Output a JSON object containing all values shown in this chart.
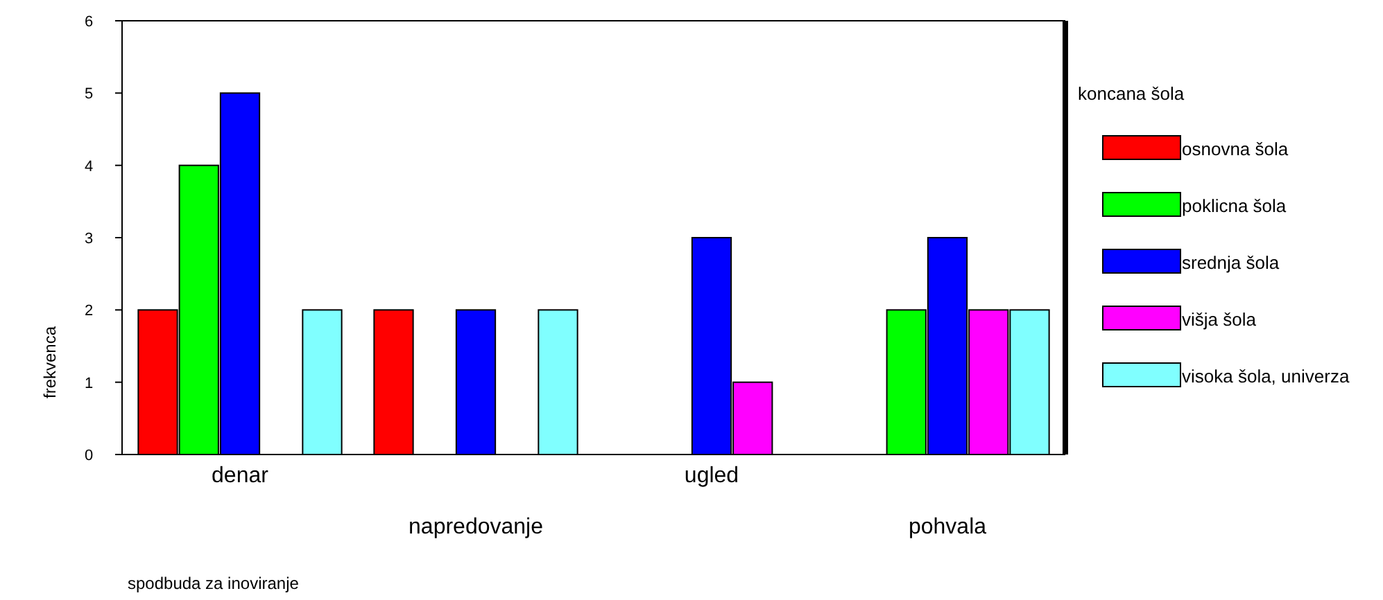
{
  "chart_data": {
    "type": "bar",
    "xlabel": "spodbuda za inoviranje",
    "ylabel": "frekvenca",
    "legend_title": "koncana šola",
    "legend": "right",
    "grid": false,
    "categories": [
      "denar",
      "napredovanje",
      "ugled",
      "pohvala"
    ],
    "ylim": [
      0,
      6
    ],
    "yticks": [
      0,
      1,
      2,
      3,
      4,
      5,
      6
    ],
    "series": [
      {
        "name": "osnovna šola",
        "color": "#ff0000",
        "values": [
          2,
          2,
          null,
          null
        ]
      },
      {
        "name": "poklicna šola",
        "color": "#00ff00",
        "values": [
          4,
          null,
          null,
          2
        ]
      },
      {
        "name": "srednja šola",
        "color": "#0000ff",
        "values": [
          5,
          2,
          3,
          3
        ]
      },
      {
        "name": "višja šola",
        "color": "#ff00ff",
        "values": [
          null,
          null,
          1,
          2
        ]
      },
      {
        "name": "visoka šola, univerza",
        "color": "#80ffff",
        "values": [
          2,
          2,
          null,
          2
        ]
      }
    ]
  }
}
